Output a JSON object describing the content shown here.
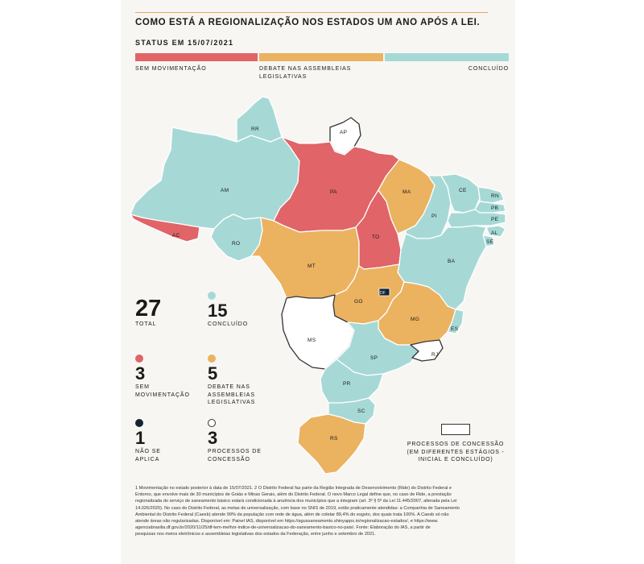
{
  "title": "COMO ESTÁ A REGIONALIZAÇÃO NOS ESTADOS UM ANO APÓS A LEI.",
  "subtitle": "STATUS EM 15/07/2021",
  "colors": {
    "sem": "#e06468",
    "debate": "#ebb260",
    "concluido": "#a6d9d6",
    "nao_aplica": "#142433",
    "concessao": "#ffffff"
  },
  "status_bar": {
    "sem": "SEM MOVIMENTAÇÃO",
    "debate": "DEBATE NAS ASSEMBLEIAS LEGISLATIVAS",
    "concluido": "CONCLUÍDO"
  },
  "stats": {
    "total": {
      "value": "27",
      "label": "TOTAL"
    },
    "concluido": {
      "value": "15",
      "label": "CONCLUÍDO"
    },
    "sem": {
      "value": "3",
      "label": "SEM MOVIMENTAÇÃO"
    },
    "debate": {
      "value": "5",
      "label": "DEBATE NAS ASSEMBLEIAS LEGISLATIVAS"
    },
    "nao_aplica": {
      "value": "1",
      "label": "NÃO SE APLICA"
    },
    "concessao": {
      "value": "3",
      "label": "PROCESSOS DE CONCESSÃO"
    }
  },
  "map_legend": "PROCESSOS DE CONCESSÃO (EM DIFERENTES ESTÁGIOS - INICIAL E CONCLUÍDO)",
  "states": {
    "RR": "RR",
    "AP": "AP",
    "AM": "AM",
    "PA": "PA",
    "MA": "MA",
    "CE": "CE",
    "RN": "RN",
    "PB": "PB",
    "PE": "PE",
    "AL": "AL",
    "SE": "SE",
    "PI": "PI",
    "AC": "AC",
    "RO": "RO",
    "TO": "TO",
    "BA": "BA",
    "MT": "MT",
    "GO": "GO",
    "DF": "DF",
    "MG": "MG",
    "ES": "ES",
    "MS": "MS",
    "SP": "SP",
    "RJ": "RJ",
    "PR": "PR",
    "SC": "SC",
    "RS": "RS"
  },
  "footnotes": [
    "1 Movimentação no estado posterior à data de 15/07/2021. 2 O Distrito Federal faz parte da Região Integrada de Desenvolvimento (Ride) do Distrito Federal e",
    "Entorno, que envolve mais de 30 municípios de Goiás e Minas Gerais, além do Distrito Federal. O novo Marco Legal define que, no caso de Ride, a prestação",
    "regionalizada do serviço de saneamento básico estará condicionada à anuência dos municípios que a integram (art. 3º § 5º da Lei 11.445/2007, alterada pela Lei",
    "14.026/2020). No caso do Distrito Federal, as metas de universalização, com base no SNIS de 2019, estão praticamente atendidas: a Companhia de Saneamento",
    "Ambiental do Distrito Federal (Caesb) atende 99% da população com rede de água, além de coletar 89,4% do esgoto, dos quais trata 100%. A Caesb só não",
    "atende áreas não regularizadas. Disponível em: Painel IAS, disponível em https://agussaneamento.shinyapps.io/regionalizacao-estados/, e https://www.",
    "agenciabrasilia.df.gov.br/2020/11/25/df-tem-melhor-indice-de-universalizacao-do-saneamento-basico-no-pais/. Fonte: Elaboração do IAS, a partir de",
    "pesquisas nos meios eletrônicos e assembleias legislativas dos estados da Federação, entre junho e setembro de 2021."
  ]
}
